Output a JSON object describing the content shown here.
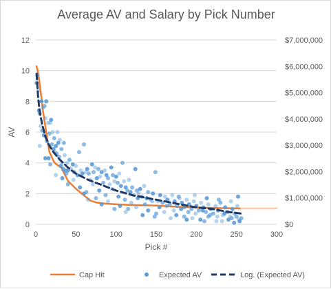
{
  "chart_data": {
    "type": "scatter",
    "title": "Average AV and Salary by Pick Number",
    "xlabel": "Pick #",
    "ylabel": "AV",
    "xlim": [
      0,
      300
    ],
    "ylim": [
      0,
      12
    ],
    "y2lim": [
      0,
      7000000
    ],
    "x_ticks": [
      "0",
      "50",
      "100",
      "150",
      "200",
      "250",
      "300"
    ],
    "y_ticks": [
      "0",
      "2",
      "4",
      "6",
      "8",
      "10",
      "12"
    ],
    "y2_ticks": [
      "$0",
      "$1,000,000",
      "$2,000,000",
      "$3,000,000",
      "$4,000,000",
      "$5,000,000",
      "$6,000,000",
      "$7,000,000"
    ],
    "grid": true,
    "legend_position": "bottom",
    "series": [
      {
        "name": "Cap Hit",
        "kind": "line",
        "axis": "secondary",
        "color": "#ed7d31",
        "points": [
          [
            1,
            6000000
          ],
          [
            3,
            5750000
          ],
          [
            5,
            5300000
          ],
          [
            7,
            4800000
          ],
          [
            9,
            4300000
          ],
          [
            11,
            3900000
          ],
          [
            13,
            3500000
          ],
          [
            15,
            3100000
          ],
          [
            17,
            2750000
          ],
          [
            20,
            2550000
          ],
          [
            23,
            2350000
          ],
          [
            27,
            2250000
          ],
          [
            32,
            2150000
          ],
          [
            36,
            1900000
          ],
          [
            40,
            1650000
          ],
          [
            45,
            1500000
          ],
          [
            50,
            1350000
          ],
          [
            56,
            1200000
          ],
          [
            62,
            1050000
          ],
          [
            68,
            900000
          ],
          [
            75,
            830000
          ],
          [
            85,
            790000
          ],
          [
            100,
            760000
          ],
          [
            115,
            740000
          ],
          [
            130,
            725000
          ],
          [
            150,
            710000
          ],
          [
            180,
            660000
          ],
          [
            210,
            630000
          ],
          [
            240,
            610000
          ],
          [
            256,
            600000
          ]
        ]
      },
      {
        "name": "",
        "kind": "line-faded",
        "axis": "secondary",
        "color": "#f8cbad",
        "points": [
          [
            256,
            600000
          ],
          [
            300,
            600000
          ]
        ]
      },
      {
        "name": "Expected AV",
        "kind": "scatter",
        "axis": "primary",
        "color": "#5b9bd5",
        "points": [
          [
            1,
            9.2
          ],
          [
            2,
            9.7
          ],
          [
            3,
            8.7
          ],
          [
            4,
            7.4
          ],
          [
            5,
            7.2
          ],
          [
            6,
            6.4
          ],
          [
            7,
            8.0
          ],
          [
            8,
            6.1
          ],
          [
            9,
            7.6
          ],
          [
            10,
            5.8
          ],
          [
            11,
            7.7
          ],
          [
            12,
            6.9
          ],
          [
            13,
            8.0
          ],
          [
            14,
            5.4
          ],
          [
            15,
            6.6
          ],
          [
            16,
            4.3
          ],
          [
            17,
            5.9
          ],
          [
            18,
            6.6
          ],
          [
            19,
            6.8
          ],
          [
            20,
            5.2
          ],
          [
            21,
            6.0
          ],
          [
            22,
            4.9
          ],
          [
            23,
            5.6
          ],
          [
            24,
            4.7
          ],
          [
            25,
            5.1
          ],
          [
            26,
            4.6
          ],
          [
            27,
            6.0
          ],
          [
            28,
            5.3
          ],
          [
            29,
            4.4
          ],
          [
            30,
            5.5
          ],
          [
            31,
            3.8
          ],
          [
            32,
            4.9
          ],
          [
            33,
            4.0
          ],
          [
            34,
            3.6
          ],
          [
            35,
            5.3
          ],
          [
            36,
            4.5
          ],
          [
            37,
            3.5
          ],
          [
            38,
            3.3
          ],
          [
            39,
            4.0
          ],
          [
            40,
            3.5
          ],
          [
            42,
            4.2
          ],
          [
            44,
            3.6
          ],
          [
            46,
            3.9
          ],
          [
            48,
            3.4
          ],
          [
            50,
            3.8
          ],
          [
            52,
            3.2
          ],
          [
            54,
            4.7
          ],
          [
            56,
            3.5
          ],
          [
            58,
            3.3
          ],
          [
            60,
            5.2
          ],
          [
            62,
            3.4
          ],
          [
            64,
            3.6
          ],
          [
            66,
            3.3
          ],
          [
            68,
            2.9
          ],
          [
            70,
            3.9
          ],
          [
            72,
            3.4
          ],
          [
            74,
            3.7
          ],
          [
            76,
            3.0
          ],
          [
            78,
            3.6
          ],
          [
            80,
            3.1
          ],
          [
            82,
            3.4
          ],
          [
            84,
            2.7
          ],
          [
            86,
            3.5
          ],
          [
            88,
            3.2
          ],
          [
            90,
            3.0
          ],
          [
            92,
            2.6
          ],
          [
            94,
            3.7
          ],
          [
            96,
            3.2
          ],
          [
            98,
            2.8
          ],
          [
            100,
            3.1
          ],
          [
            102,
            2.7
          ],
          [
            104,
            3.3
          ],
          [
            106,
            2.5
          ],
          [
            108,
            4.0
          ],
          [
            110,
            2.8
          ],
          [
            112,
            2.4
          ],
          [
            114,
            2.2
          ],
          [
            116,
            2.9
          ],
          [
            118,
            2.1
          ],
          [
            120,
            2.4
          ],
          [
            122,
            1.9
          ],
          [
            124,
            3.6
          ],
          [
            126,
            2.2
          ],
          [
            128,
            2.0
          ],
          [
            130,
            2.3
          ],
          [
            132,
            1.8
          ],
          [
            135,
            2.5
          ],
          [
            138,
            1.7
          ],
          [
            140,
            2.1
          ],
          [
            143,
            1.6
          ],
          [
            146,
            2.0
          ],
          [
            149,
            3.4
          ],
          [
            152,
            1.5
          ],
          [
            155,
            1.9
          ],
          [
            158,
            1.4
          ],
          [
            161,
            1.8
          ],
          [
            164,
            1.6
          ],
          [
            167,
            1.3
          ],
          [
            170,
            1.9
          ],
          [
            173,
            1.5
          ],
          [
            176,
            1.2
          ],
          [
            179,
            1.7
          ],
          [
            182,
            1.4
          ],
          [
            185,
            1.1
          ],
          [
            188,
            1.6
          ],
          [
            191,
            1.3
          ],
          [
            194,
            1.0
          ],
          [
            197,
            1.5
          ],
          [
            200,
            1.2
          ],
          [
            203,
            0.9
          ],
          [
            206,
            1.4
          ],
          [
            209,
            1.1
          ],
          [
            212,
            0.8
          ],
          [
            215,
            1.3
          ],
          [
            218,
            1.0
          ],
          [
            221,
            0.7
          ],
          [
            224,
            1.2
          ],
          [
            227,
            0.9
          ],
          [
            230,
            1.4
          ],
          [
            233,
            0.6
          ],
          [
            236,
            1.1
          ],
          [
            239,
            0.8
          ],
          [
            242,
            0.5
          ],
          [
            245,
            1.0
          ],
          [
            248,
            0.7
          ],
          [
            251,
            1.2
          ],
          [
            254,
            0.2
          ],
          [
            256,
            0.4
          ],
          [
            5,
            5.1
          ],
          [
            12,
            4.3
          ],
          [
            18,
            3.9
          ],
          [
            25,
            3.2
          ],
          [
            33,
            3.0
          ],
          [
            40,
            2.6
          ],
          [
            47,
            2.9
          ],
          [
            55,
            2.4
          ],
          [
            63,
            2.1
          ],
          [
            71,
            2.6
          ],
          [
            79,
            2.2
          ],
          [
            87,
            1.9
          ],
          [
            95,
            2.3
          ],
          [
            103,
            1.8
          ],
          [
            111,
            1.6
          ],
          [
            119,
            1.4
          ],
          [
            127,
            1.7
          ],
          [
            136,
            1.3
          ],
          [
            145,
            1.5
          ],
          [
            154,
            1.1
          ],
          [
            163,
            1.2
          ],
          [
            172,
            0.9
          ],
          [
            181,
            1.0
          ],
          [
            190,
            0.8
          ],
          [
            199,
            0.7
          ],
          [
            208,
            0.9
          ],
          [
            217,
            0.6
          ],
          [
            226,
            0.5
          ],
          [
            235,
            0.7
          ],
          [
            244,
            0.4
          ],
          [
            253,
            0.3
          ],
          [
            60,
            2.0
          ],
          [
            75,
            1.7
          ],
          [
            90,
            1.5
          ],
          [
            105,
            1.2
          ],
          [
            115,
            1.0
          ],
          [
            125,
            1.1
          ],
          [
            140,
            0.9
          ],
          [
            150,
            0.7
          ],
          [
            160,
            0.8
          ],
          [
            175,
            0.6
          ],
          [
            185,
            0.5
          ],
          [
            195,
            0.4
          ],
          [
            205,
            0.3
          ],
          [
            215,
            0.5
          ],
          [
            225,
            0.2
          ],
          [
            240,
            0.3
          ],
          [
            250,
            0.5
          ],
          [
            65,
            1.6
          ],
          [
            82,
            1.3
          ],
          [
            98,
            1.0
          ],
          [
            112,
            0.8
          ],
          [
            133,
            0.6
          ],
          [
            148,
            0.5
          ],
          [
            168,
            0.4
          ],
          [
            188,
            0.3
          ],
          [
            210,
            0.2
          ],
          [
            232,
            0.2
          ],
          [
            247,
            0.1
          ],
          [
            178,
            1.8
          ],
          [
            198,
            1.9
          ],
          [
            213,
            1.7
          ],
          [
            228,
            1.6
          ],
          [
            243,
            1.5
          ],
          [
            252,
            1.8
          ]
        ]
      },
      {
        "name": "Log. (Expected AV)",
        "kind": "trendline",
        "axis": "primary",
        "color": "#1f3864",
        "points": [
          [
            1,
            9.8
          ],
          [
            3,
            8.2
          ],
          [
            5,
            7.3
          ],
          [
            8,
            6.5
          ],
          [
            12,
            5.7
          ],
          [
            16,
            5.2
          ],
          [
            22,
            4.7
          ],
          [
            30,
            4.2
          ],
          [
            40,
            3.7
          ],
          [
            50,
            3.3
          ],
          [
            65,
            2.9
          ],
          [
            80,
            2.6
          ],
          [
            100,
            2.2
          ],
          [
            120,
            1.9
          ],
          [
            140,
            1.7
          ],
          [
            160,
            1.5
          ],
          [
            180,
            1.3
          ],
          [
            200,
            1.1
          ],
          [
            220,
            1.0
          ],
          [
            240,
            0.8
          ],
          [
            256,
            0.7
          ]
        ]
      }
    ]
  }
}
